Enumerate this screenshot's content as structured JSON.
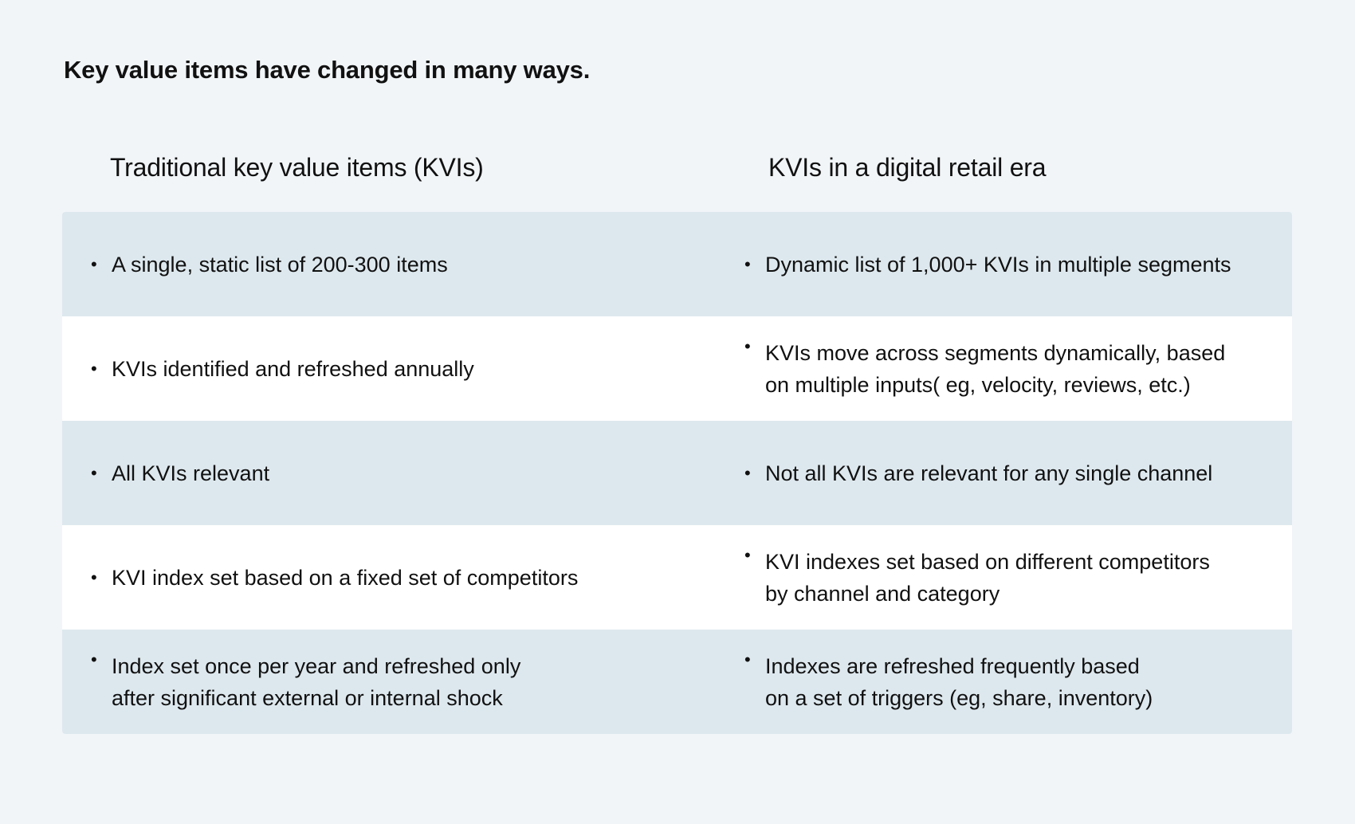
{
  "title": "Key value items have changed in many ways.",
  "columns": {
    "left": "Traditional key value items (KVIs)",
    "right": "KVIs in a digital retail era"
  },
  "bullet_char": "•",
  "rows": [
    {
      "left": "A single, static list of 200-300 items",
      "right": "Dynamic list of 1,000+ KVIs in multiple segments"
    },
    {
      "left": "KVIs identified and refreshed annually",
      "right": "KVIs move across segments dynamically, based\non multiple inputs( eg, velocity, reviews, etc.)"
    },
    {
      "left": "All KVIs relevant",
      "right": "Not all KVIs are relevant for any single channel"
    },
    {
      "left": "KVI index set based on a fixed set of competitors",
      "right": "KVI indexes set based on different competitors\nby channel and category"
    },
    {
      "left": "Index set once per year and refreshed only\nafter significant external or internal shock",
      "right": "Indexes are refreshed frequently based\non a set of triggers (eg, share, inventory)"
    }
  ],
  "colors": {
    "background": "#f1f5f8",
    "row_shaded": "#dde8ee",
    "row_plain": "#ffffff",
    "text": "#111111"
  }
}
